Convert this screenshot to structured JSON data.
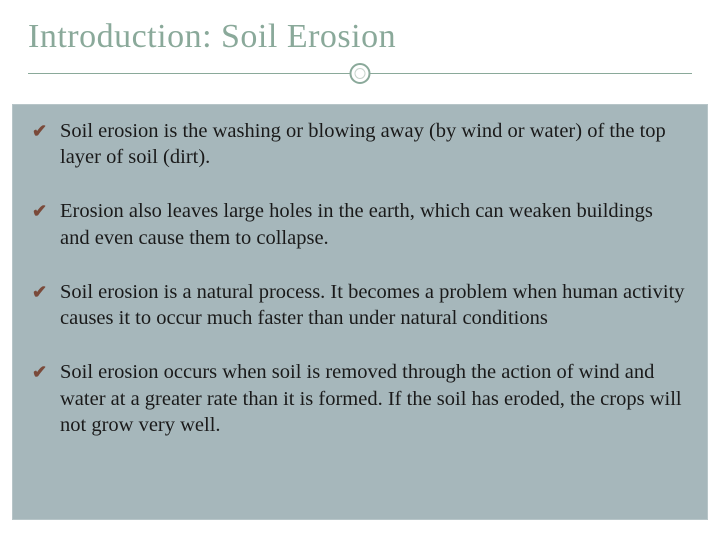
{
  "slide": {
    "title": "Introduction: Soil Erosion",
    "title_color": "#8aa99a",
    "title_fontsize": 34,
    "divider_color": "#8aa99a",
    "content_bg": "#a6b7bb",
    "bullet_color": "#7a4a3a",
    "bullet_glyph": "✔",
    "text_color": "#1a1a1a",
    "text_fontsize": 20.5,
    "bullets": [
      "Soil erosion is the washing or blowing away (by wind or water) of the top layer of soil (dirt).",
      "Erosion also leaves large holes in the earth, which can weaken buildings and even cause them to collapse.",
      "Soil erosion is a natural process. It becomes a problem when human activity causes it to occur much faster than under natural conditions",
      "Soil erosion occurs when soil is removed through the action of wind and water at a greater rate than it is formed. If the soil has eroded, the crops will not grow very well."
    ]
  }
}
